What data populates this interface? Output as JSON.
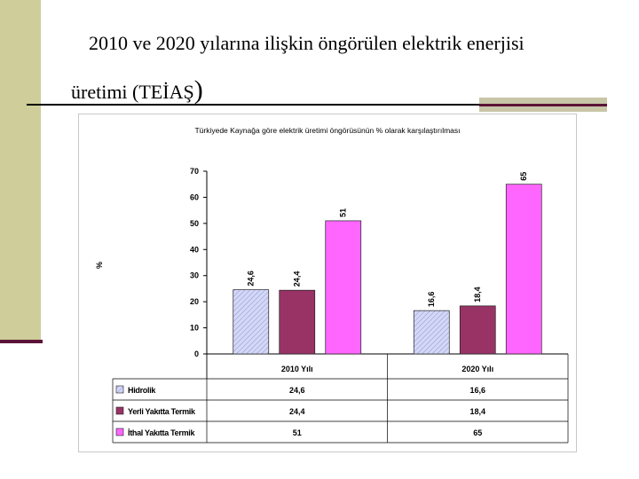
{
  "slide": {
    "title_line1": "2010 ve 2020 yılarına ilişkin öngörülen elektrik enerjisi",
    "title_line2": "üretimi (TEİAŞ",
    "title_paren": ")"
  },
  "chart_data": {
    "type": "bar",
    "title": "Türkiyede Kaynağa göre elektrik üretimi öngörüsünün % olarak karşılaştırılması",
    "ylabel": "%",
    "xlabel": "",
    "ylim": [
      0,
      70
    ],
    "yticks": [
      0,
      10,
      20,
      30,
      40,
      50,
      60,
      70
    ],
    "categories": [
      "2010 Yılı",
      "2020 Yılı"
    ],
    "series": [
      {
        "name": "Hidrolik",
        "values": [
          24.6,
          16.6
        ],
        "labels": [
          "24,6",
          "16,6"
        ],
        "color": "#c9cdf0",
        "pattern": "hatch"
      },
      {
        "name": "Yerli Yakıtta Termik",
        "values": [
          24.4,
          18.4
        ],
        "labels": [
          "24,4",
          "18,4"
        ],
        "color": "#993366"
      },
      {
        "name": "İthal Yakıtta Termik",
        "values": [
          51,
          65
        ],
        "labels": [
          "51",
          "65"
        ],
        "color": "#ff66ff"
      }
    ],
    "grid": false,
    "legend": "data-table-below"
  }
}
